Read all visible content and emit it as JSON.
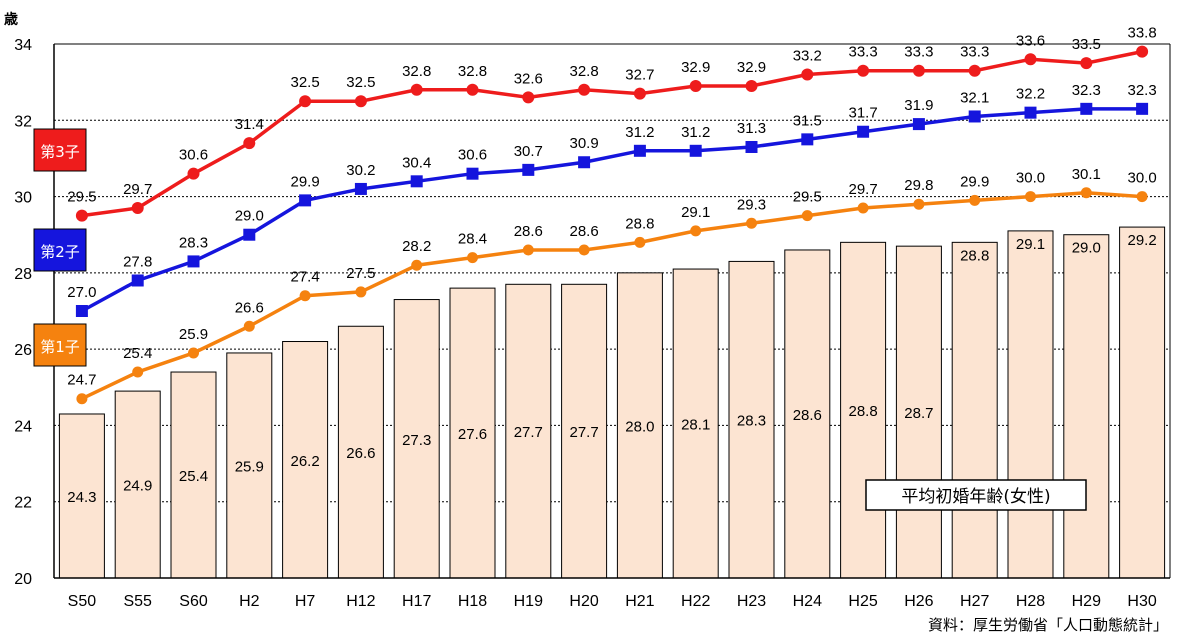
{
  "chart_data": {
    "type": "bar+line",
    "unit_label": "歳",
    "categories": [
      "S50",
      "S55",
      "S60",
      "H2",
      "H7",
      "H12",
      "H17",
      "H18",
      "H19",
      "H20",
      "H21",
      "H22",
      "H23",
      "H24",
      "H25",
      "H26",
      "H27",
      "H28",
      "H29",
      "H30"
    ],
    "ylim": [
      20,
      34
    ],
    "yticks": [
      20,
      22,
      24,
      26,
      28,
      30,
      32,
      34
    ],
    "bars": {
      "name": "平均初婚年齢(女性)",
      "color": "#fce4d2",
      "values": [
        24.3,
        24.9,
        25.4,
        25.9,
        26.2,
        26.6,
        27.3,
        27.6,
        27.7,
        27.7,
        28.0,
        28.1,
        28.3,
        28.6,
        28.8,
        28.7,
        28.8,
        29.1,
        29.0,
        29.2
      ]
    },
    "series": [
      {
        "name": "第3子",
        "color": "#ee1c1c",
        "values": [
          29.5,
          29.7,
          30.6,
          31.4,
          32.5,
          32.5,
          32.8,
          32.8,
          32.6,
          32.8,
          32.7,
          32.9,
          32.9,
          33.2,
          33.3,
          33.3,
          33.3,
          33.6,
          33.5,
          33.8
        ]
      },
      {
        "name": "第2子",
        "color": "#1515dd",
        "values": [
          27.0,
          27.8,
          28.3,
          29.0,
          29.9,
          30.2,
          30.4,
          30.6,
          30.7,
          30.9,
          31.2,
          31.2,
          31.3,
          31.5,
          31.7,
          31.9,
          32.1,
          32.2,
          32.3,
          32.3
        ]
      },
      {
        "name": "第1子",
        "color": "#f5820f",
        "values": [
          24.7,
          25.4,
          25.9,
          26.6,
          27.4,
          27.5,
          28.2,
          28.4,
          28.6,
          28.6,
          28.8,
          29.1,
          29.3,
          29.5,
          29.7,
          29.8,
          29.9,
          30.0,
          30.1,
          30.0
        ]
      }
    ],
    "grid": "dotted horizontal",
    "source": "資料：厚生労働省「人口動態統計」"
  }
}
